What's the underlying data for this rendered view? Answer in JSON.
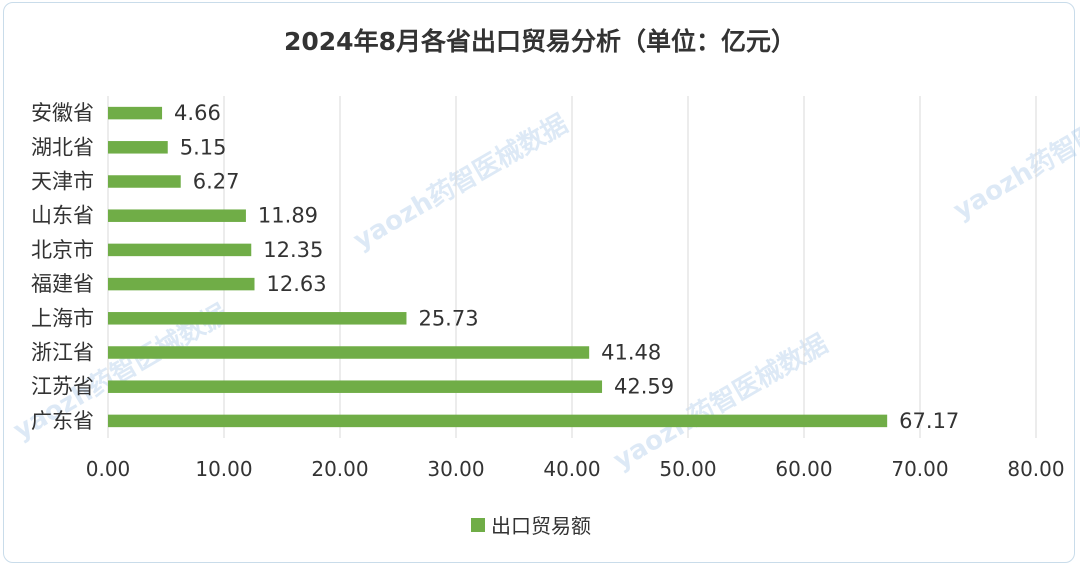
{
  "chart_data": {
    "type": "bar",
    "orientation": "horizontal",
    "title": "2024年8月各省出口贸易分析（单位：亿元）",
    "categories": [
      "安徽省",
      "湖北省",
      "天津市",
      "山东省",
      "北京市",
      "福建省",
      "上海市",
      "浙江省",
      "江苏省",
      "广东省"
    ],
    "series": [
      {
        "name": "出口贸易额",
        "values": [
          4.66,
          5.15,
          6.27,
          11.89,
          12.35,
          12.63,
          25.73,
          41.48,
          42.59,
          67.17
        ],
        "value_labels": [
          "4.66",
          "5.15",
          "6.27",
          "11.89",
          "12.35",
          "12.63",
          "25.73",
          "41.48",
          "42.59",
          "67.17"
        ]
      }
    ],
    "xlim": [
      0,
      80
    ],
    "x_ticks": [
      "0.00",
      "10.00",
      "20.00",
      "30.00",
      "40.00",
      "50.00",
      "60.00",
      "70.00",
      "80.00"
    ],
    "grid": "vertical",
    "legend_position": "bottom",
    "bar_color": "#70ad47"
  },
  "watermark": "yaozh药智医械数据"
}
